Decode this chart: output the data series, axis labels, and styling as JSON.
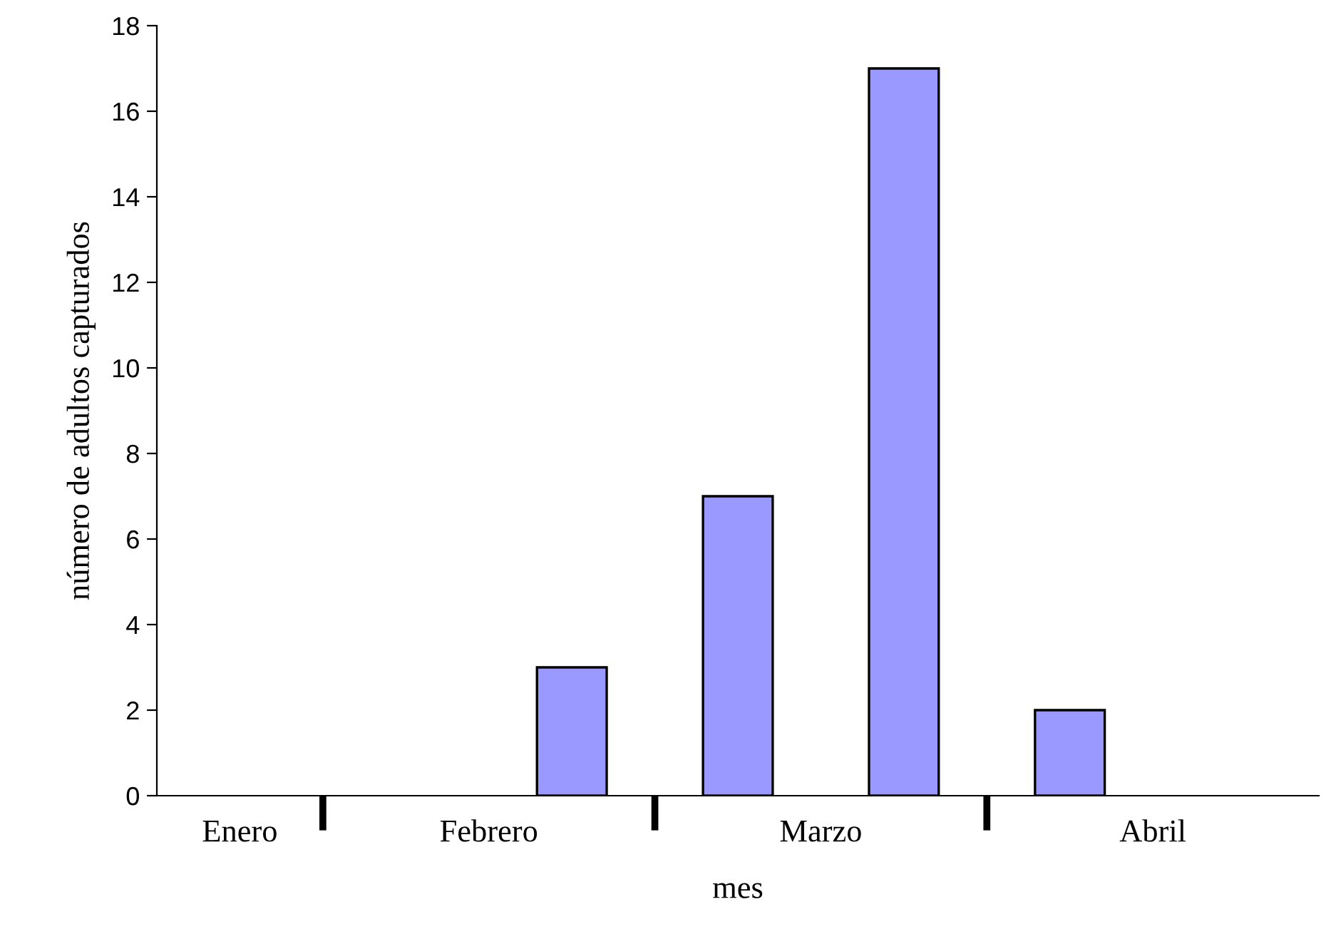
{
  "chart_data": {
    "type": "bar",
    "xlabel": "mes",
    "ylabel": "número de adultos capturados",
    "categories": [
      "Enero",
      "Febrero",
      null,
      "Marzo",
      null,
      "Abril",
      null
    ],
    "values": [
      null,
      null,
      3,
      7,
      17,
      2,
      null
    ],
    "color": "#9999ff",
    "ylim": [
      0,
      18
    ],
    "yticks": [
      0,
      2,
      4,
      6,
      8,
      10,
      12,
      14,
      16,
      18
    ],
    "grid": false,
    "legend": false
  }
}
